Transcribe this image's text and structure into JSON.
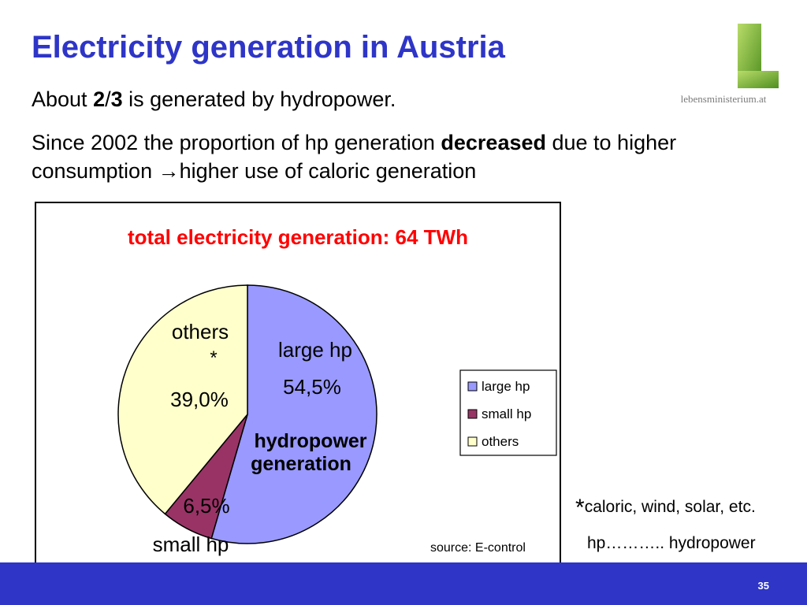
{
  "slide": {
    "title": "Electricity generation in Austria",
    "logo_text": "lebensministerium.at",
    "line1": {
      "pre": "About ",
      "bold_a": "2",
      "slash": "/",
      "bold_b": "3",
      "post": " is generated by hydropower."
    },
    "line2": {
      "pre": "Since 2002 the proportion of hp generation ",
      "bold": "decreased",
      "mid": " due to higher consumption ",
      "arrow": "→",
      "post": "higher use of caloric generation"
    },
    "footnote_star": "*",
    "footnote_text": "caloric, wind, solar, etc.",
    "footnote_hp": "hp……….. hydropower",
    "page_number": "35"
  },
  "colors": {
    "title": "#2e35c7",
    "chart_title": "#ff0000",
    "large_hp": "#9999ff",
    "small_hp": "#993366",
    "others": "#ffffcc",
    "bar": "#2e35c7",
    "logo_green": "#7fb23a"
  },
  "chart_data": {
    "type": "pie",
    "title": "total  electricity generation: 64 TWh",
    "categories": [
      "large hp",
      "small hp",
      "others"
    ],
    "values": [
      54.5,
      6.5,
      39.0
    ],
    "slice_labels": [
      {
        "name": "large hp",
        "value": "54,5%"
      },
      {
        "name": "small hp",
        "value": "6,5%"
      },
      {
        "name": "others",
        "star": "*",
        "value": "39,0%"
      }
    ],
    "group_annotation": [
      "hydropower",
      "generation"
    ],
    "legend": [
      "large hp",
      "small hp",
      "others"
    ],
    "legend_position": "right",
    "source": "source: E-control"
  }
}
